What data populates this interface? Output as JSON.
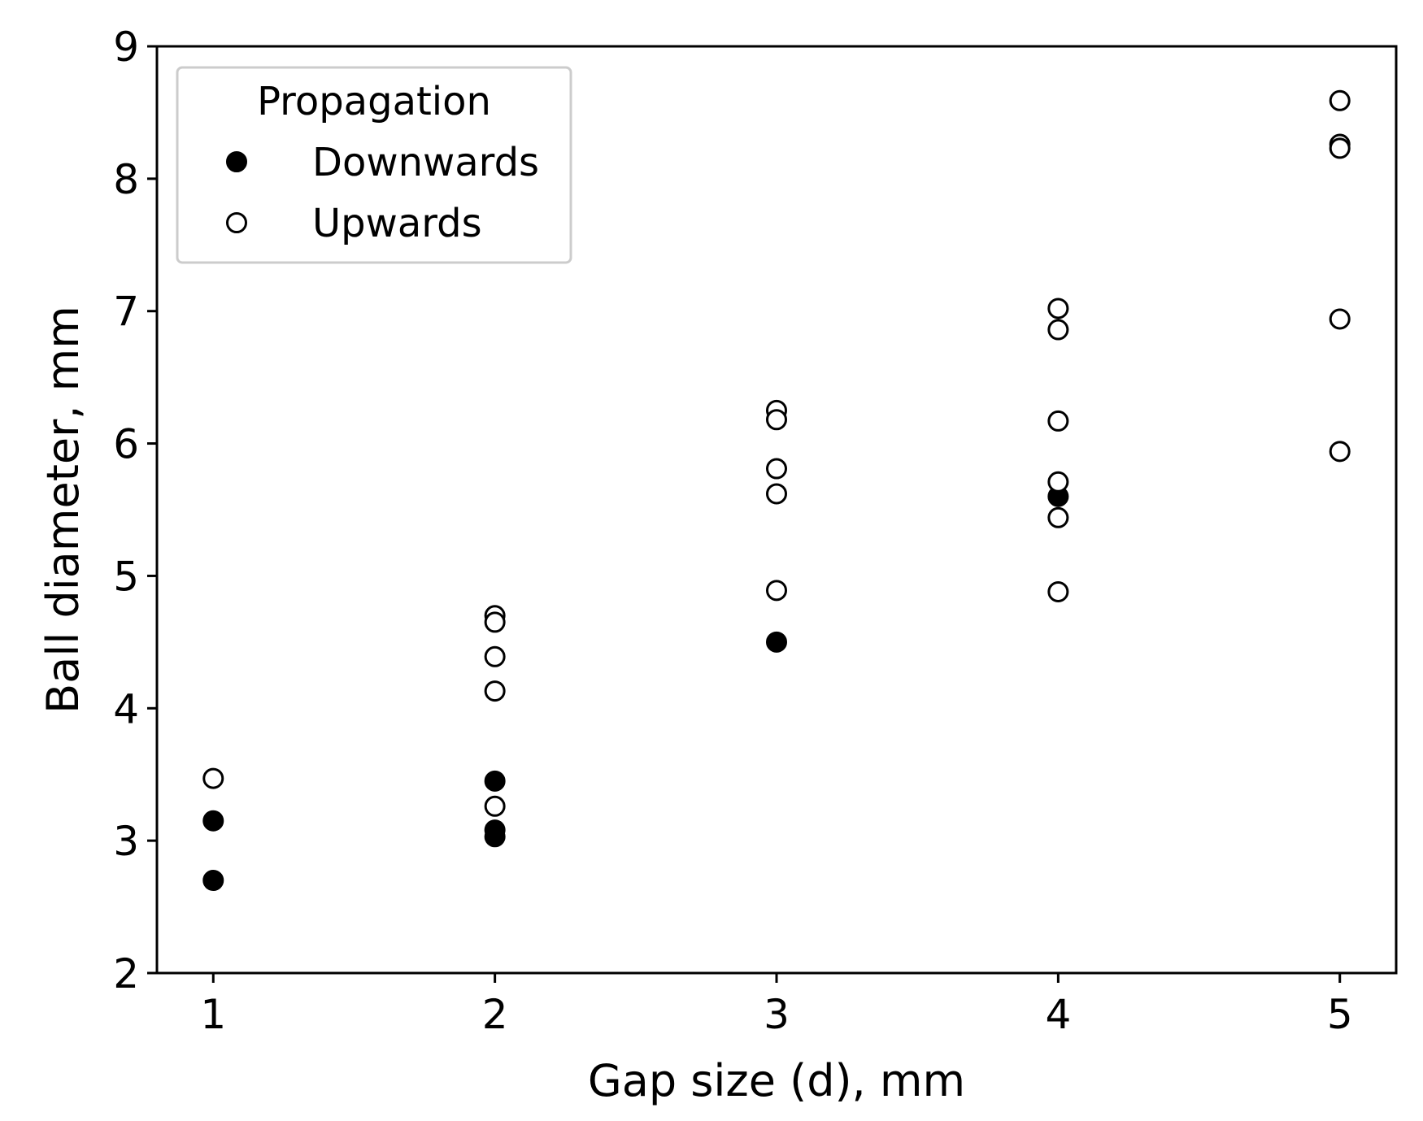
{
  "chart_data": {
    "type": "scatter",
    "title": "",
    "xlabel": "Gap size (d), mm",
    "ylabel": "Ball diameter, mm",
    "xlim": [
      0.8,
      5.2
    ],
    "ylim": [
      2,
      9
    ],
    "xticks": [
      "1",
      "2",
      "3",
      "4",
      "5"
    ],
    "yticks": [
      "2",
      "3",
      "4",
      "5",
      "6",
      "7",
      "8",
      "9"
    ],
    "grid": false,
    "legend": {
      "title": "Propagation",
      "placement": "top-left"
    },
    "series": [
      {
        "name": "Downwards",
        "marker": "filled-circle",
        "color": "#000000",
        "points": [
          {
            "x": 1,
            "y": 3.15
          },
          {
            "x": 1,
            "y": 2.7
          },
          {
            "x": 2,
            "y": 3.45
          },
          {
            "x": 2,
            "y": 3.08
          },
          {
            "x": 2,
            "y": 3.03
          },
          {
            "x": 3,
            "y": 4.5
          },
          {
            "x": 4,
            "y": 5.6
          }
        ]
      },
      {
        "name": "Upwards",
        "marker": "open-circle",
        "color": "#000000",
        "points": [
          {
            "x": 1,
            "y": 3.47
          },
          {
            "x": 2,
            "y": 4.7
          },
          {
            "x": 2,
            "y": 4.65
          },
          {
            "x": 2,
            "y": 4.39
          },
          {
            "x": 2,
            "y": 4.13
          },
          {
            "x": 2,
            "y": 3.26
          },
          {
            "x": 3,
            "y": 6.25
          },
          {
            "x": 3,
            "y": 6.18
          },
          {
            "x": 3,
            "y": 5.81
          },
          {
            "x": 3,
            "y": 5.62
          },
          {
            "x": 3,
            "y": 4.89
          },
          {
            "x": 4,
            "y": 7.02
          },
          {
            "x": 4,
            "y": 6.86
          },
          {
            "x": 4,
            "y": 6.17
          },
          {
            "x": 4,
            "y": 5.71
          },
          {
            "x": 4,
            "y": 5.44
          },
          {
            "x": 4,
            "y": 4.88
          },
          {
            "x": 5,
            "y": 8.59
          },
          {
            "x": 5,
            "y": 8.26
          },
          {
            "x": 5,
            "y": 8.23
          },
          {
            "x": 5,
            "y": 6.94
          },
          {
            "x": 5,
            "y": 5.94
          }
        ]
      }
    ]
  }
}
